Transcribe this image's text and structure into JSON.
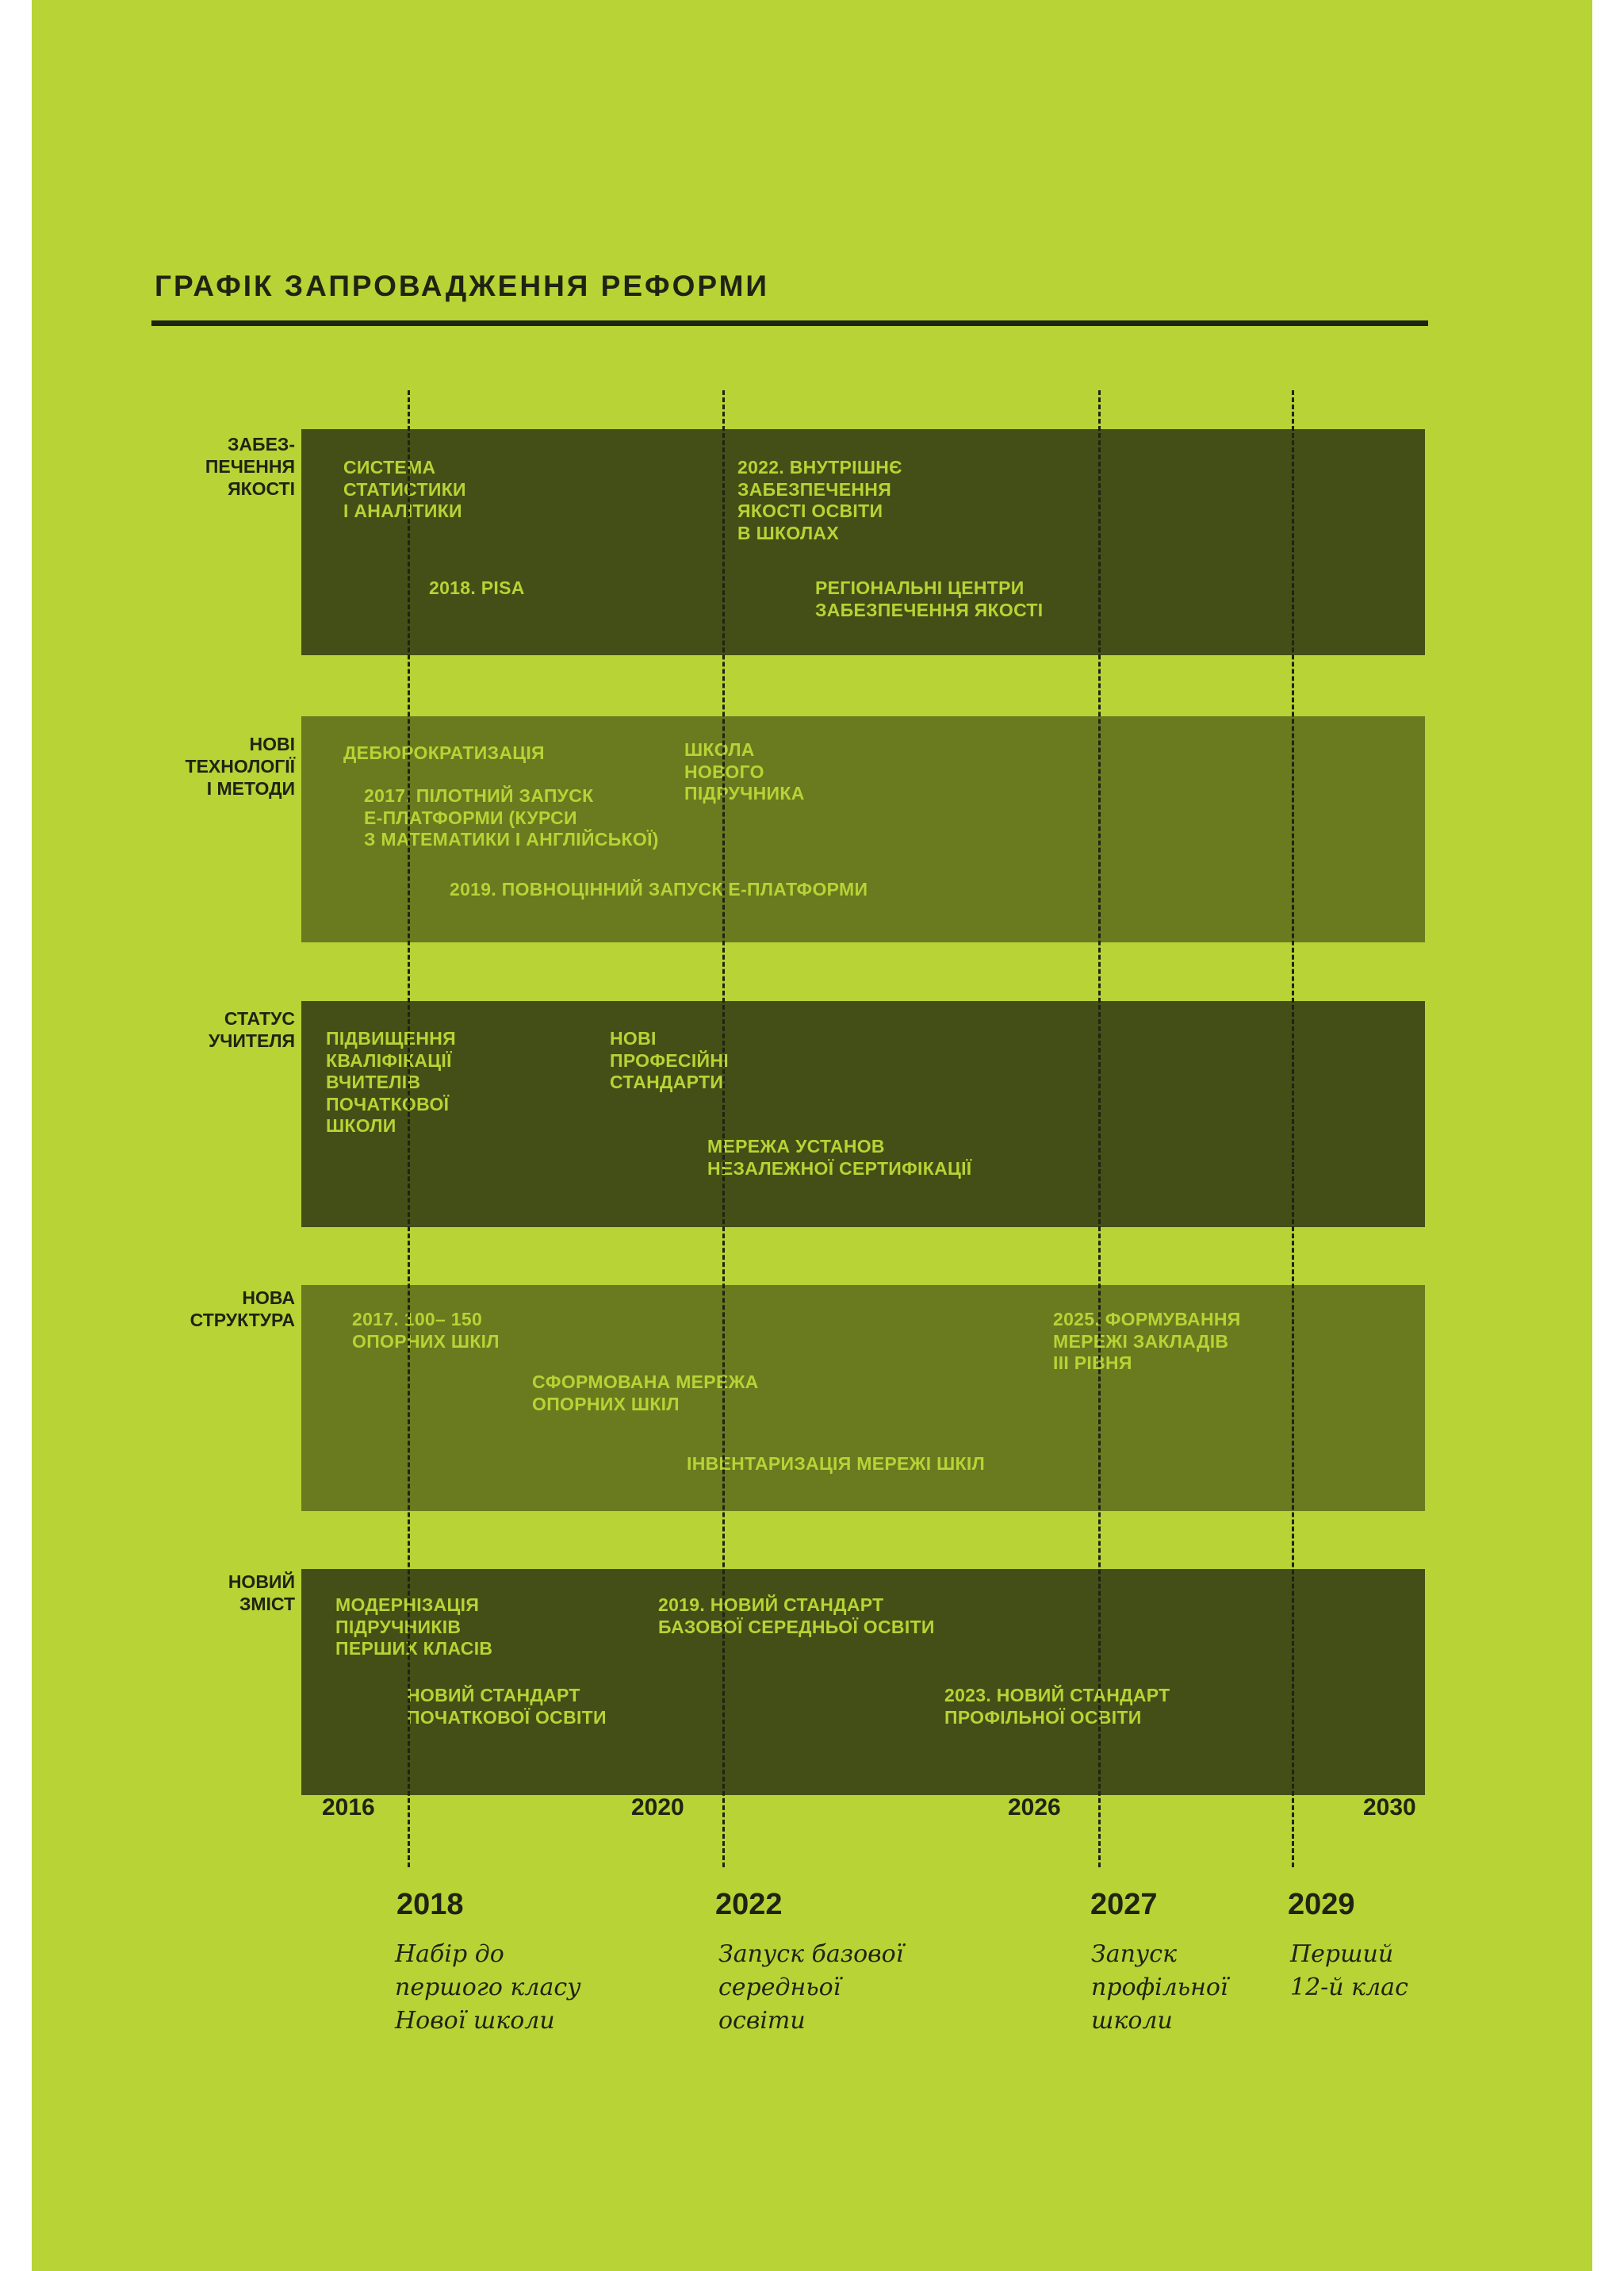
{
  "title": "ГРАФІК ЗАПРОВАДЖЕННЯ РЕФОРМИ",
  "colors": {
    "background": "#b7d335",
    "band_dark": "#434f16",
    "band_mid": "#6a7a1f",
    "text_dark": "#1e2413",
    "text_light": "#b7d335"
  },
  "rows": [
    {
      "label": "ЗАБЕЗ-\nПЕЧЕННЯ\nЯКОСТІ",
      "items": [
        "СИСТЕМА\nСТАТИСТИКИ\nІ АНАЛІТИКИ",
        "2022. ВНУТРІШНЄ\nЗАБЕЗПЕЧЕННЯ\nЯКОСТІ ОСВІТИ\nВ ШКОЛАХ",
        "2018. PISA",
        "РЕГІОНАЛЬНІ ЦЕНТРИ\nЗАБЕЗПЕЧЕННЯ ЯКОСТІ"
      ]
    },
    {
      "label": "НОВІ\nТЕХНОЛОГІЇ\nІ МЕТОДИ",
      "items": [
        "ДЕБЮРОКРАТИЗАЦІЯ",
        "ШКОЛА\nНОВОГО\nПІДРУЧНИКА",
        "2017. ПІЛОТНИЙ ЗАПУСК\nЕ-ПЛАТФОРМИ (КУРСИ\nЗ МАТЕМАТИКИ І АНГЛІЙСЬКОЇ)",
        "2019. ПОВНОЦІННИЙ ЗАПУСК Е-ПЛАТФОРМИ"
      ]
    },
    {
      "label": "СТАТУС\nУЧИТЕЛЯ",
      "items": [
        "ПІДВИЩЕННЯ\nКВАЛІФІКАЦІЇ\nВЧИТЕЛІВ\nПОЧАТКОВОЇ\nШКОЛИ",
        "НОВІ\nПРОФЕСІЙНІ\nСТАНДАРТИ",
        "МЕРЕЖА УСТАНОВ\nНЕЗАЛЕЖНОЇ СЕРТИФІКАЦІЇ"
      ]
    },
    {
      "label": "НОВА\nСТРУКТУРА",
      "items": [
        "2017. 100– 150\nОПОРНИХ ШКІЛ",
        "2025. ФОРМУВАННЯ\nМЕРЕЖІ ЗАКЛАДІВ\nІІІ РІВНЯ",
        "СФОРМОВАНА МЕРЕЖА\nОПОРНИХ ШКІЛ",
        "ІНВЕНТАРИЗАЦІЯ МЕРЕЖІ ШКІЛ"
      ]
    },
    {
      "label": "НОВИЙ\nЗМІСТ",
      "items": [
        "МОДЕРНІЗАЦІЯ\nПІДРУЧНИКІВ\nПЕРШИХ КЛАСІВ",
        "2019. НОВИЙ СТАНДАРТ\nБАЗОВОЇ СЕРЕДНЬОЇ ОСВІТИ",
        "НОВИЙ СТАНДАРТ\nПОЧАТКОВОЇ ОСВІТИ",
        "2023. НОВИЙ СТАНДАРТ\nПРОФІЛЬНОЇ ОСВІТИ"
      ]
    }
  ],
  "axis_years": [
    "2016",
    "2020",
    "2026",
    "2030"
  ],
  "milestones": [
    {
      "year": "2018",
      "text": "Набір до\nпершого класу\nНової школи"
    },
    {
      "year": "2022",
      "text": "Запуск базової\nсередньої\nосвіти"
    },
    {
      "year": "2027",
      "text": "Запуск\nпрофільної\nшколи"
    },
    {
      "year": "2029",
      "text": "Перший\n12-й клас"
    }
  ]
}
